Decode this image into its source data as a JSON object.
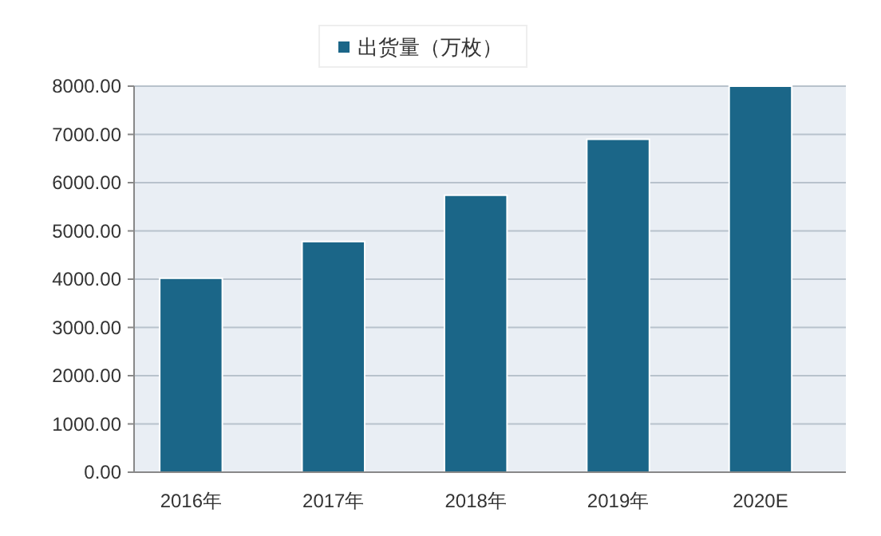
{
  "chart_data": {
    "type": "bar",
    "categories": [
      "2016年",
      "2017年",
      "2018年",
      "2019年",
      "2020E"
    ],
    "series": [
      {
        "name": "出货量（万枚）",
        "color": "#1b6688",
        "values": [
          4020,
          4780,
          5740,
          6900,
          8000
        ]
      }
    ],
    "ylim": [
      0,
      8000
    ],
    "yticks": [
      {
        "value": 0,
        "label": "0.00"
      },
      {
        "value": 1000,
        "label": "1000.00"
      },
      {
        "value": 2000,
        "label": "2000.00"
      },
      {
        "value": 3000,
        "label": "3000.00"
      },
      {
        "value": 4000,
        "label": "4000.00"
      },
      {
        "value": 5000,
        "label": "5000.00"
      },
      {
        "value": 6000,
        "label": "6000.00"
      },
      {
        "value": 7000,
        "label": "7000.00"
      },
      {
        "value": 8000,
        "label": "8000.00"
      }
    ],
    "grid": "y",
    "legend": "top"
  }
}
